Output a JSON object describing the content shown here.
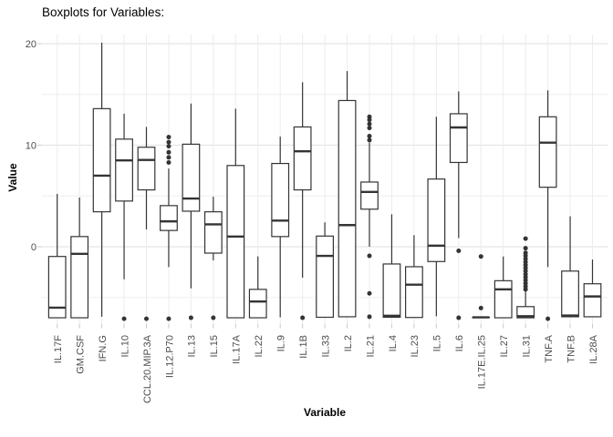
{
  "chart_data": {
    "type": "boxplot",
    "title": "Boxplots for Variables:",
    "xlabel": "Variable",
    "ylabel": "Value",
    "ylim": [
      -7.5,
      20.9
    ],
    "yticks_major": [
      0,
      10,
      20
    ],
    "yticks_minor": [
      -5,
      5,
      15
    ],
    "grid": "light gray on white, major + minor horizontal, vertical at categories",
    "legend": false,
    "box_fill": "#ffffff",
    "box_stroke": "#343434",
    "grid_color": "#e5e5e5",
    "grid_minor_color": "#efefef",
    "tick_color": "#c9c9c9",
    "tick_label_color": "#4d4d4d",
    "variables": [
      {
        "name": "IL.17F",
        "low": -7.0,
        "q1": -7.0,
        "median": -6.0,
        "q3": -0.96,
        "high": 5.2,
        "outliers": []
      },
      {
        "name": "GM.CSF",
        "low": -7.0,
        "q1": -7.0,
        "median": -0.7,
        "q3": 1.0,
        "high": 4.85,
        "outliers": []
      },
      {
        "name": "IFN.G",
        "low": -6.9,
        "q1": 3.44,
        "median": 7.0,
        "q3": 13.6,
        "high": 20.1,
        "outliers": []
      },
      {
        "name": "IL.10",
        "low": -3.2,
        "q1": 4.5,
        "median": 8.5,
        "q3": 10.6,
        "high": 13.1,
        "outliers": [
          -7.1
        ]
      },
      {
        "name": "CCL.20.MIP.3A",
        "low": 1.7,
        "q1": 5.6,
        "median": 8.55,
        "q3": 9.8,
        "high": 11.8,
        "outliers": [
          -7.1
        ]
      },
      {
        "name": "IL.12.P70",
        "low": -2.0,
        "q1": 1.6,
        "median": 2.5,
        "q3": 4.05,
        "high": 7.7,
        "outliers": [
          10.8,
          10.3,
          9.9,
          9.3,
          8.8,
          8.3,
          -7.1
        ]
      },
      {
        "name": "IL.13",
        "low": -4.1,
        "q1": 3.5,
        "median": 4.75,
        "q3": 10.1,
        "high": 14.1,
        "outliers": [
          -7.0
        ]
      },
      {
        "name": "IL.15",
        "low": -1.35,
        "q1": -0.63,
        "median": 2.2,
        "q3": 3.44,
        "high": 4.93,
        "outliers": [
          -7.0
        ]
      },
      {
        "name": "IL.17A",
        "low": -7.0,
        "q1": -7.0,
        "median": 1.0,
        "q3": 8.0,
        "high": 13.6,
        "outliers": []
      },
      {
        "name": "IL.22",
        "low": -7.0,
        "q1": -7.0,
        "median": -5.4,
        "q3": -4.2,
        "high": -0.96,
        "outliers": []
      },
      {
        "name": "IL.9",
        "low": -6.95,
        "q1": 1.0,
        "median": 2.57,
        "q3": 8.2,
        "high": 10.85,
        "outliers": []
      },
      {
        "name": "IL.1B",
        "low": -3.05,
        "q1": 5.6,
        "median": 9.4,
        "q3": 11.8,
        "high": 16.2,
        "outliers": [
          -7.0
        ]
      },
      {
        "name": "IL.33",
        "low": -6.95,
        "q1": -6.95,
        "median": -0.9,
        "q3": 1.05,
        "high": 2.4,
        "outliers": []
      },
      {
        "name": "IL.2",
        "low": -6.9,
        "q1": -6.9,
        "median": 2.13,
        "q3": 14.4,
        "high": 17.3,
        "outliers": []
      },
      {
        "name": "IL.21",
        "low": 0.0,
        "q1": 3.7,
        "median": 5.4,
        "q3": 6.37,
        "high": 10.25,
        "outliers": [
          12.8,
          12.5,
          12.1,
          11.7,
          10.9,
          10.5,
          -0.9,
          -4.6,
          -6.9
        ]
      },
      {
        "name": "IL.4",
        "low": -6.95,
        "q1": -6.95,
        "median": -6.8,
        "q3": -1.7,
        "high": 3.2,
        "outliers": []
      },
      {
        "name": "IL.23",
        "low": -6.97,
        "q1": -6.97,
        "median": -3.74,
        "q3": -1.97,
        "high": 1.14,
        "outliers": []
      },
      {
        "name": "IL.5",
        "low": -6.85,
        "q1": -1.46,
        "median": 0.1,
        "q3": 6.67,
        "high": 12.8,
        "outliers": []
      },
      {
        "name": "IL.6",
        "low": 0.85,
        "q1": 8.3,
        "median": 11.75,
        "q3": 13.1,
        "high": 15.3,
        "outliers": [
          -0.4,
          -7.0
        ]
      },
      {
        "name": "IL.17E.IL.25",
        "low": -6.96,
        "q1": -6.96,
        "median": -6.96,
        "q3": -6.96,
        "high": -6.96,
        "outliers": [
          -0.96,
          -6.04
        ]
      },
      {
        "name": "IL.27",
        "low": -7.0,
        "q1": -7.0,
        "median": -4.2,
        "q3": -3.35,
        "high": -0.96,
        "outliers": []
      },
      {
        "name": "IL.31",
        "low": -7.0,
        "q1": -7.0,
        "median": -6.85,
        "q3": -5.9,
        "high": -4.4,
        "outliers": [
          0.8,
          -0.15,
          -0.6,
          -0.9,
          -1.2,
          -1.5,
          -1.8,
          -2.1,
          -2.4,
          -2.7,
          -3.0,
          -3.3,
          -3.6,
          -3.9,
          -4.2
        ]
      },
      {
        "name": "TNF.A",
        "low": -2.0,
        "q1": 5.86,
        "median": 10.25,
        "q3": 12.8,
        "high": 15.4,
        "outliers": [
          -7.1
        ]
      },
      {
        "name": "TNF.B",
        "low": -6.9,
        "q1": -6.9,
        "median": -6.78,
        "q3": -2.4,
        "high": 3.0,
        "outliers": []
      },
      {
        "name": "IL.28A",
        "low": -6.9,
        "q1": -6.9,
        "median": -4.9,
        "q3": -3.65,
        "high": -1.26,
        "outliers": []
      }
    ]
  }
}
